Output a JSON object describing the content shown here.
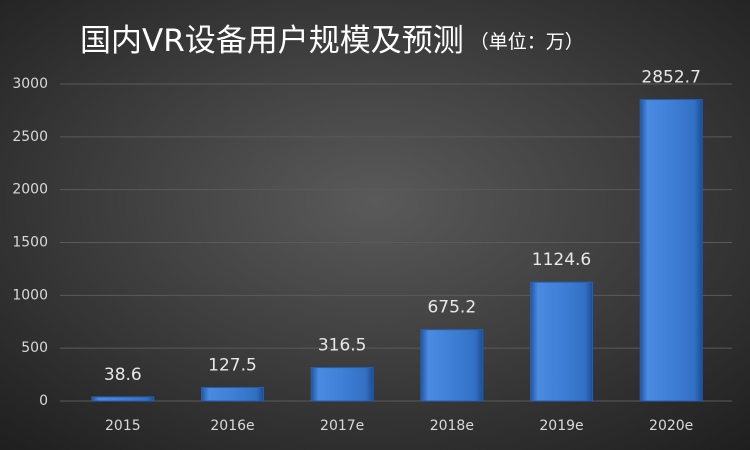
{
  "chart_data": {
    "type": "bar",
    "title": "国内VR设备用户规模及预测",
    "subtitle": "（单位：万）",
    "categories": [
      "2015",
      "2016e",
      "2017e",
      "2018e",
      "2019e",
      "2020e"
    ],
    "values": [
      38.6,
      127.5,
      316.5,
      675.2,
      1124.6,
      2852.7
    ],
    "color": "#3f7fd6",
    "ylim": [
      0,
      3000
    ],
    "yticks": [
      0,
      500,
      1000,
      1500,
      2000,
      2500,
      3000
    ],
    "grid": true
  }
}
